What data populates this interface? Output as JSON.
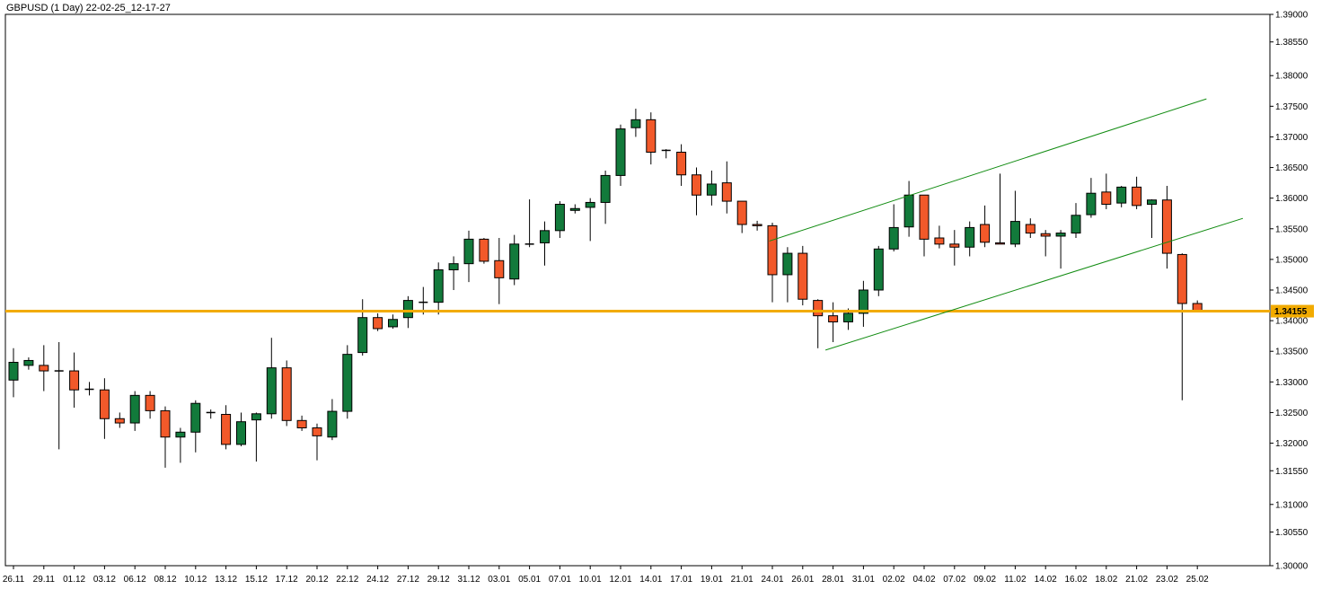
{
  "chart_data": {
    "type": "candlestick",
    "title": "GBPUSD (1 Day) 22-02-25_12-17-27",
    "symbol": "GBPUSD",
    "timeframe": "1 Day",
    "ylim": [
      1.3,
      1.39
    ],
    "y_ticks": [
      "1.39000",
      "1.38550",
      "1.38000",
      "1.37500",
      "1.37000",
      "1.36500",
      "1.36000",
      "1.35500",
      "1.35000",
      "1.34500",
      "1.34000",
      "1.33500",
      "1.33000",
      "1.32500",
      "1.32000",
      "1.31550",
      "1.31000",
      "1.30550",
      "1.30000"
    ],
    "x_tick_labels": [
      "26.11",
      "29.11",
      "01.12",
      "03.12",
      "06.12",
      "08.12",
      "10.12",
      "13.12",
      "15.12",
      "17.12",
      "20.12",
      "22.12",
      "24.12",
      "27.12",
      "29.12",
      "31.12",
      "03.01",
      "05.01",
      "07.01",
      "10.01",
      "12.01",
      "14.01",
      "17.01",
      "19.01",
      "21.01",
      "24.01",
      "26.01",
      "28.01",
      "31.01",
      "02.02",
      "04.02",
      "07.02",
      "09.02",
      "11.02",
      "14.02",
      "16.02",
      "18.02",
      "21.02",
      "23.02",
      "25.02"
    ],
    "candles": [
      {
        "o": 1.3303,
        "h": 1.3355,
        "l": 1.3275,
        "c": 1.3332
      },
      {
        "o": 1.3327,
        "h": 1.334,
        "l": 1.332,
        "c": 1.3335
      },
      {
        "o": 1.3327,
        "h": 1.336,
        "l": 1.3285,
        "c": 1.3318
      },
      {
        "o": 1.3318,
        "h": 1.3365,
        "l": 1.319,
        "c": 1.3318
      },
      {
        "o": 1.3318,
        "h": 1.3348,
        "l": 1.3258,
        "c": 1.3287
      },
      {
        "o": 1.3288,
        "h": 1.33,
        "l": 1.3278,
        "c": 1.3288
      },
      {
        "o": 1.3287,
        "h": 1.3306,
        "l": 1.3207,
        "c": 1.324
      },
      {
        "o": 1.324,
        "h": 1.325,
        "l": 1.3225,
        "c": 1.3233
      },
      {
        "o": 1.3233,
        "h": 1.3285,
        "l": 1.322,
        "c": 1.3278
      },
      {
        "o": 1.3278,
        "h": 1.3285,
        "l": 1.324,
        "c": 1.3253
      },
      {
        "o": 1.3253,
        "h": 1.326,
        "l": 1.316,
        "c": 1.321
      },
      {
        "o": 1.321,
        "h": 1.3225,
        "l": 1.3168,
        "c": 1.3218
      },
      {
        "o": 1.3218,
        "h": 1.327,
        "l": 1.3185,
        "c": 1.3265
      },
      {
        "o": 1.325,
        "h": 1.3255,
        "l": 1.324,
        "c": 1.325
      },
      {
        "o": 1.3247,
        "h": 1.3262,
        "l": 1.319,
        "c": 1.3198
      },
      {
        "o": 1.3198,
        "h": 1.325,
        "l": 1.3195,
        "c": 1.3235
      },
      {
        "o": 1.3238,
        "h": 1.325,
        "l": 1.317,
        "c": 1.3248
      },
      {
        "o": 1.3248,
        "h": 1.3372,
        "l": 1.324,
        "c": 1.3323
      },
      {
        "o": 1.3323,
        "h": 1.3335,
        "l": 1.3228,
        "c": 1.3237
      },
      {
        "o": 1.3237,
        "h": 1.3245,
        "l": 1.322,
        "c": 1.3225
      },
      {
        "o": 1.3225,
        "h": 1.3232,
        "l": 1.3172,
        "c": 1.3212
      },
      {
        "o": 1.321,
        "h": 1.3272,
        "l": 1.3205,
        "c": 1.3252
      },
      {
        "o": 1.3252,
        "h": 1.336,
        "l": 1.324,
        "c": 1.3345
      },
      {
        "o": 1.3348,
        "h": 1.3435,
        "l": 1.3343,
        "c": 1.3405
      },
      {
        "o": 1.3405,
        "h": 1.3412,
        "l": 1.3383,
        "c": 1.3387
      },
      {
        "o": 1.339,
        "h": 1.341,
        "l": 1.3387,
        "c": 1.3402
      },
      {
        "o": 1.3405,
        "h": 1.344,
        "l": 1.3388,
        "c": 1.3433
      },
      {
        "o": 1.343,
        "h": 1.3455,
        "l": 1.341,
        "c": 1.343
      },
      {
        "o": 1.343,
        "h": 1.3495,
        "l": 1.341,
        "c": 1.3483
      },
      {
        "o": 1.3483,
        "h": 1.3505,
        "l": 1.345,
        "c": 1.3493
      },
      {
        "o": 1.3493,
        "h": 1.3547,
        "l": 1.3463,
        "c": 1.3533
      },
      {
        "o": 1.3533,
        "h": 1.3535,
        "l": 1.3493,
        "c": 1.3497
      },
      {
        "o": 1.3498,
        "h": 1.3535,
        "l": 1.3427,
        "c": 1.347
      },
      {
        "o": 1.3468,
        "h": 1.354,
        "l": 1.3458,
        "c": 1.3525
      },
      {
        "o": 1.3525,
        "h": 1.3598,
        "l": 1.352,
        "c": 1.3525
      },
      {
        "o": 1.3527,
        "h": 1.3562,
        "l": 1.349,
        "c": 1.3547
      },
      {
        "o": 1.3547,
        "h": 1.3595,
        "l": 1.3535,
        "c": 1.359
      },
      {
        "o": 1.358,
        "h": 1.359,
        "l": 1.3575,
        "c": 1.3583
      },
      {
        "o": 1.3585,
        "h": 1.36,
        "l": 1.353,
        "c": 1.3593
      },
      {
        "o": 1.3593,
        "h": 1.3645,
        "l": 1.3558,
        "c": 1.3637
      },
      {
        "o": 1.3637,
        "h": 1.372,
        "l": 1.362,
        "c": 1.3713
      },
      {
        "o": 1.3715,
        "h": 1.3746,
        "l": 1.37,
        "c": 1.3728
      },
      {
        "o": 1.3728,
        "h": 1.374,
        "l": 1.3655,
        "c": 1.3675
      },
      {
        "o": 1.3678,
        "h": 1.368,
        "l": 1.3665,
        "c": 1.3678
      },
      {
        "o": 1.3675,
        "h": 1.3688,
        "l": 1.362,
        "c": 1.3638
      },
      {
        "o": 1.3638,
        "h": 1.365,
        "l": 1.3572,
        "c": 1.3605
      },
      {
        "o": 1.3605,
        "h": 1.3645,
        "l": 1.3588,
        "c": 1.3623
      },
      {
        "o": 1.3625,
        "h": 1.366,
        "l": 1.3575,
        "c": 1.3595
      },
      {
        "o": 1.3595,
        "h": 1.3595,
        "l": 1.3543,
        "c": 1.3557
      },
      {
        "o": 1.3557,
        "h": 1.3563,
        "l": 1.3547,
        "c": 1.3555
      },
      {
        "o": 1.3555,
        "h": 1.356,
        "l": 1.343,
        "c": 1.3475
      },
      {
        "o": 1.3475,
        "h": 1.352,
        "l": 1.343,
        "c": 1.351
      },
      {
        "o": 1.351,
        "h": 1.3522,
        "l": 1.3425,
        "c": 1.3435
      },
      {
        "o": 1.3433,
        "h": 1.3435,
        "l": 1.3355,
        "c": 1.3408
      },
      {
        "o": 1.3408,
        "h": 1.343,
        "l": 1.3365,
        "c": 1.3398
      },
      {
        "o": 1.3398,
        "h": 1.342,
        "l": 1.3385,
        "c": 1.3412
      },
      {
        "o": 1.3412,
        "h": 1.3465,
        "l": 1.339,
        "c": 1.345
      },
      {
        "o": 1.345,
        "h": 1.3522,
        "l": 1.344,
        "c": 1.3517
      },
      {
        "o": 1.3517,
        "h": 1.359,
        "l": 1.3513,
        "c": 1.3552
      },
      {
        "o": 1.3553,
        "h": 1.3628,
        "l": 1.3537,
        "c": 1.3605
      },
      {
        "o": 1.3605,
        "h": 1.3605,
        "l": 1.3505,
        "c": 1.3533
      },
      {
        "o": 1.3535,
        "h": 1.3555,
        "l": 1.3518,
        "c": 1.3525
      },
      {
        "o": 1.3525,
        "h": 1.3548,
        "l": 1.349,
        "c": 1.352
      },
      {
        "o": 1.352,
        "h": 1.3562,
        "l": 1.3505,
        "c": 1.3552
      },
      {
        "o": 1.3557,
        "h": 1.3588,
        "l": 1.352,
        "c": 1.3528
      },
      {
        "o": 1.3527,
        "h": 1.364,
        "l": 1.3525,
        "c": 1.3525
      },
      {
        "o": 1.3525,
        "h": 1.3612,
        "l": 1.352,
        "c": 1.3562
      },
      {
        "o": 1.3557,
        "h": 1.3567,
        "l": 1.3535,
        "c": 1.3543
      },
      {
        "o": 1.3542,
        "h": 1.3548,
        "l": 1.3505,
        "c": 1.3538
      },
      {
        "o": 1.3538,
        "h": 1.3548,
        "l": 1.3485,
        "c": 1.3543
      },
      {
        "o": 1.3543,
        "h": 1.3592,
        "l": 1.3535,
        "c": 1.3572
      },
      {
        "o": 1.3573,
        "h": 1.3633,
        "l": 1.3568,
        "c": 1.3608
      },
      {
        "o": 1.361,
        "h": 1.364,
        "l": 1.3582,
        "c": 1.359
      },
      {
        "o": 1.3592,
        "h": 1.362,
        "l": 1.3585,
        "c": 1.3618
      },
      {
        "o": 1.3618,
        "h": 1.3635,
        "l": 1.3582,
        "c": 1.3588
      },
      {
        "o": 1.359,
        "h": 1.3598,
        "l": 1.3535,
        "c": 1.3597
      },
      {
        "o": 1.3597,
        "h": 1.362,
        "l": 1.3485,
        "c": 1.351
      },
      {
        "o": 1.3508,
        "h": 1.351,
        "l": 1.327,
        "c": 1.3428
      },
      {
        "o": 1.3428,
        "h": 1.3433,
        "l": 1.3415,
        "c": 1.3416
      }
    ],
    "current_price": 1.34155,
    "current_price_label": "1.34155",
    "horizontal_line": 1.34155,
    "channel_lines": [
      {
        "from": {
          "i": 49.8,
          "p": 1.353
        },
        "to": {
          "i": 78.6,
          "p": 1.3762
        }
      },
      {
        "from": {
          "i": 53.5,
          "p": 1.3352
        },
        "to": {
          "i": 81.0,
          "p": 1.3567
        }
      }
    ],
    "colors": {
      "bull": "#127a3b",
      "bear": "#f2592a",
      "candle_outline": "#000000",
      "level_line": "#f2ab00",
      "channel": "#128c12",
      "price_tag_bg": "#f2ab00"
    }
  }
}
